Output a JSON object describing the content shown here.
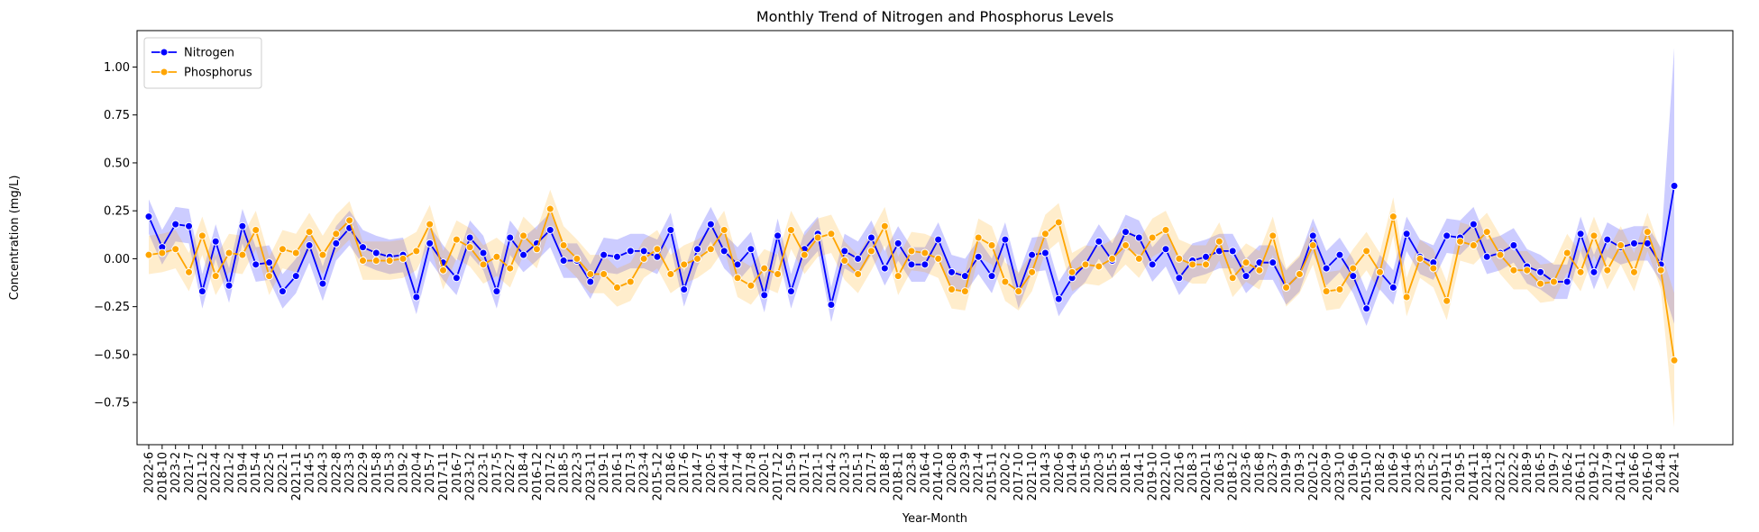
{
  "chart_data": {
    "type": "line",
    "title": "Monthly Trend of Nitrogen and Phosphorus Levels",
    "xlabel": "Year-Month",
    "ylabel": "Concentration (mg/L)",
    "categories": [
      "2022-6",
      "2018-10",
      "2023-2",
      "2021-7",
      "2021-12",
      "2022-4",
      "2021-2",
      "2019-4",
      "2015-4",
      "2022-5",
      "2022-1",
      "2021-11",
      "2014-5",
      "2024-3",
      "2022-8",
      "2023-3",
      "2022-9",
      "2015-8",
      "2015-3",
      "2019-2",
      "2020-4",
      "2015-7",
      "2017-11",
      "2016-7",
      "2023-12",
      "2023-1",
      "2017-5",
      "2022-7",
      "2018-4",
      "2016-12",
      "2017-2",
      "2018-5",
      "2022-3",
      "2023-11",
      "2019-1",
      "2016-1",
      "2017-3",
      "2023-4",
      "2015-12",
      "2018-6",
      "2017-6",
      "2014-7",
      "2020-5",
      "2014-4",
      "2017-4",
      "2017-8",
      "2020-1",
      "2017-12",
      "2015-9",
      "2017-1",
      "2021-1",
      "2014-2",
      "2021-3",
      "2015-1",
      "2017-7",
      "2018-8",
      "2018-11",
      "2023-8",
      "2016-4",
      "2014-10",
      "2020-8",
      "2023-9",
      "2021-4",
      "2015-11",
      "2020-2",
      "2017-10",
      "2021-10",
      "2014-3",
      "2020-6",
      "2014-9",
      "2015-6",
      "2020-3",
      "2015-5",
      "2018-1",
      "2014-1",
      "2019-10",
      "2022-10",
      "2021-6",
      "2018-3",
      "2020-11",
      "2016-3",
      "2018-12",
      "2023-6",
      "2016-8",
      "2023-7",
      "2019-9",
      "2019-3",
      "2020-12",
      "2020-9",
      "2023-10",
      "2019-6",
      "2015-10",
      "2018-2",
      "2016-9",
      "2014-6",
      "2023-5",
      "2015-2",
      "2019-11",
      "2019-5",
      "2014-11",
      "2021-8",
      "2022-12",
      "2022-2",
      "2018-9",
      "2016-5",
      "2019-7",
      "2016-2",
      "2016-11",
      "2019-12",
      "2017-9",
      "2014-12",
      "2016-6",
      "2016-10",
      "2014-8",
      "2024-1"
    ],
    "series": [
      {
        "name": "Nitrogen",
        "color": "#0000ff",
        "values": [
          0.22,
          0.06,
          0.18,
          0.17,
          -0.17,
          0.09,
          -0.14,
          0.17,
          -0.03,
          -0.02,
          -0.17,
          -0.09,
          0.07,
          -0.13,
          0.08,
          0.16,
          0.06,
          0.03,
          0.01,
          0.02,
          -0.2,
          0.08,
          -0.02,
          -0.1,
          0.11,
          0.03,
          -0.17,
          0.11,
          0.02,
          0.08,
          0.15,
          -0.01,
          -0.01,
          -0.12,
          0.02,
          0.01,
          0.04,
          0.04,
          0.01,
          0.15,
          -0.16,
          0.05,
          0.18,
          0.04,
          -0.03,
          0.05,
          -0.19,
          0.12,
          -0.17,
          0.05,
          0.13,
          -0.24,
          0.04,
          0.0,
          0.11,
          -0.05,
          0.08,
          -0.03,
          -0.03,
          0.1,
          -0.07,
          -0.09,
          0.01,
          -0.09,
          0.1,
          -0.17,
          0.02,
          0.03,
          -0.21,
          -0.1,
          -0.03,
          0.09,
          -0.01,
          0.14,
          0.11,
          -0.03,
          0.05,
          -0.1,
          -0.01,
          0.01,
          0.04,
          0.04,
          -0.09,
          -0.02,
          -0.02,
          -0.15,
          -0.08,
          0.12,
          -0.05,
          0.02,
          -0.09,
          -0.26,
          -0.07,
          -0.15,
          0.13,
          0.01,
          -0.02,
          0.12,
          0.11,
          0.18,
          0.01,
          0.03,
          0.07,
          -0.04,
          -0.07,
          -0.12,
          -0.12,
          0.13,
          -0.07,
          0.1,
          0.06,
          0.08,
          0.08,
          -0.03,
          0.38
        ],
        "ci": [
          0.09,
          0.09,
          0.09,
          0.09,
          0.09,
          0.09,
          0.09,
          0.09,
          0.09,
          0.09,
          0.09,
          0.09,
          0.09,
          0.09,
          0.09,
          0.09,
          0.09,
          0.09,
          0.09,
          0.09,
          0.09,
          0.09,
          0.09,
          0.09,
          0.09,
          0.09,
          0.09,
          0.09,
          0.09,
          0.09,
          0.09,
          0.09,
          0.09,
          0.09,
          0.09,
          0.09,
          0.09,
          0.09,
          0.09,
          0.09,
          0.09,
          0.09,
          0.09,
          0.09,
          0.09,
          0.09,
          0.09,
          0.09,
          0.09,
          0.09,
          0.09,
          0.09,
          0.09,
          0.09,
          0.09,
          0.09,
          0.09,
          0.09,
          0.09,
          0.09,
          0.09,
          0.09,
          0.09,
          0.09,
          0.09,
          0.09,
          0.09,
          0.09,
          0.09,
          0.09,
          0.09,
          0.09,
          0.09,
          0.09,
          0.09,
          0.09,
          0.09,
          0.09,
          0.09,
          0.09,
          0.09,
          0.09,
          0.09,
          0.09,
          0.09,
          0.09,
          0.09,
          0.09,
          0.09,
          0.09,
          0.09,
          0.09,
          0.09,
          0.09,
          0.09,
          0.09,
          0.09,
          0.09,
          0.09,
          0.09,
          0.09,
          0.09,
          0.09,
          0.09,
          0.09,
          0.09,
          0.09,
          0.09,
          0.09,
          0.09,
          0.09,
          0.09,
          0.09,
          0.09,
          0.72
        ]
      },
      {
        "name": "Phosphorus",
        "color": "#ffa500",
        "values": [
          0.02,
          0.03,
          0.05,
          -0.07,
          0.12,
          -0.09,
          0.03,
          0.02,
          0.15,
          -0.09,
          0.05,
          0.03,
          0.14,
          0.02,
          0.13,
          0.2,
          -0.01,
          -0.01,
          -0.01,
          0.0,
          0.04,
          0.18,
          -0.06,
          0.1,
          0.06,
          -0.03,
          0.01,
          -0.05,
          0.12,
          0.05,
          0.26,
          0.07,
          0.0,
          -0.08,
          -0.08,
          -0.15,
          -0.12,
          0.0,
          0.05,
          -0.08,
          -0.03,
          0.0,
          0.05,
          0.15,
          -0.1,
          -0.14,
          -0.05,
          -0.08,
          0.15,
          0.02,
          0.11,
          0.13,
          -0.01,
          -0.08,
          0.04,
          0.17,
          -0.09,
          0.04,
          0.03,
          0.0,
          -0.16,
          -0.17,
          0.11,
          0.07,
          -0.12,
          -0.17,
          -0.07,
          0.13,
          0.19,
          -0.07,
          -0.03,
          -0.04,
          0.0,
          0.07,
          0.0,
          0.11,
          0.15,
          0.0,
          -0.03,
          -0.03,
          0.09,
          -0.1,
          -0.02,
          -0.06,
          0.12,
          -0.15,
          -0.08,
          0.07,
          -0.17,
          -0.16,
          -0.05,
          0.04,
          -0.07,
          0.22,
          -0.2,
          0.0,
          -0.05,
          -0.22,
          0.09,
          0.07,
          0.14,
          0.02,
          -0.06,
          -0.06,
          -0.13,
          -0.12,
          0.03,
          -0.07,
          0.12,
          -0.06,
          0.07,
          -0.07,
          0.14,
          -0.06,
          -0.53
        ],
        "ci": [
          0.1,
          0.1,
          0.1,
          0.1,
          0.1,
          0.1,
          0.1,
          0.1,
          0.1,
          0.1,
          0.1,
          0.1,
          0.1,
          0.1,
          0.1,
          0.1,
          0.1,
          0.1,
          0.1,
          0.1,
          0.1,
          0.1,
          0.1,
          0.1,
          0.1,
          0.1,
          0.1,
          0.1,
          0.1,
          0.1,
          0.1,
          0.1,
          0.1,
          0.1,
          0.1,
          0.1,
          0.1,
          0.1,
          0.1,
          0.1,
          0.1,
          0.1,
          0.1,
          0.1,
          0.1,
          0.1,
          0.1,
          0.1,
          0.1,
          0.1,
          0.1,
          0.1,
          0.1,
          0.1,
          0.1,
          0.1,
          0.1,
          0.1,
          0.1,
          0.1,
          0.1,
          0.1,
          0.1,
          0.1,
          0.1,
          0.1,
          0.1,
          0.1,
          0.1,
          0.1,
          0.1,
          0.1,
          0.1,
          0.1,
          0.1,
          0.1,
          0.1,
          0.1,
          0.1,
          0.1,
          0.1,
          0.1,
          0.1,
          0.1,
          0.1,
          0.1,
          0.1,
          0.1,
          0.1,
          0.1,
          0.1,
          0.1,
          0.1,
          0.1,
          0.1,
          0.1,
          0.1,
          0.1,
          0.1,
          0.1,
          0.1,
          0.1,
          0.1,
          0.1,
          0.1,
          0.1,
          0.1,
          0.1,
          0.1,
          0.1,
          0.1,
          0.1,
          0.1,
          0.1,
          0.35
        ]
      }
    ],
    "ylim": [
      -0.97,
      1.19
    ],
    "yticks": [
      {
        "value": -0.75,
        "label": "−0.75"
      },
      {
        "value": -0.5,
        "label": "−0.50"
      },
      {
        "value": -0.25,
        "label": "−0.25"
      },
      {
        "value": 0,
        "label": "0.00"
      },
      {
        "value": 0.25,
        "label": "0.25"
      },
      {
        "value": 0.5,
        "label": "0.50"
      },
      {
        "value": 0.75,
        "label": "0.75"
      },
      {
        "value": 1,
        "label": "1.00"
      }
    ],
    "legend": "upper left",
    "grid": false
  }
}
